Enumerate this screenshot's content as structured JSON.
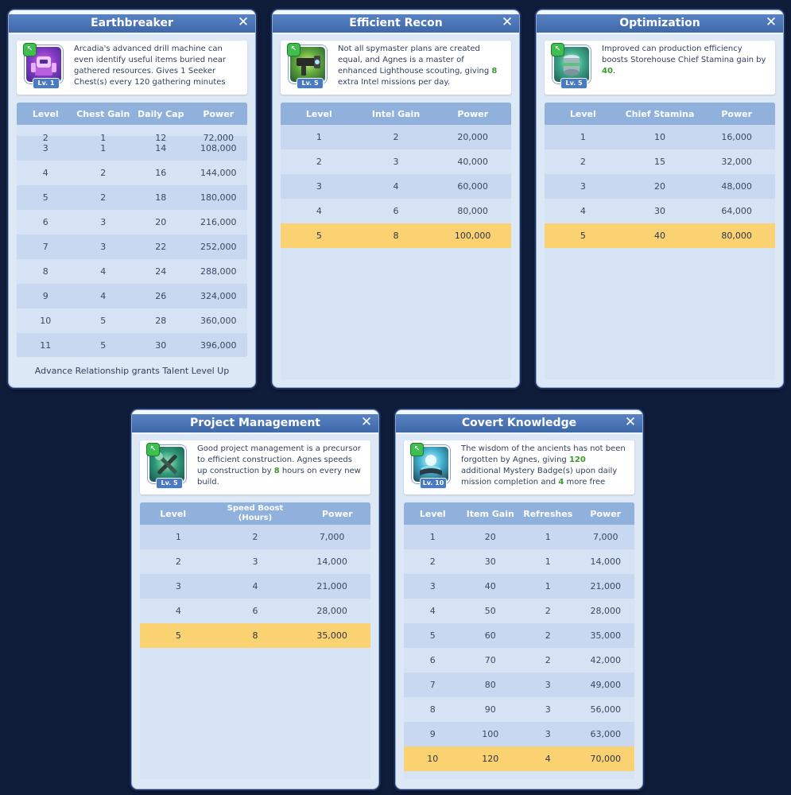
{
  "panels": {
    "earthbreaker": {
      "title": "Earthbreaker",
      "level_badge": "Lv. 1",
      "icon": "drill-robot-icon",
      "desc_1": "Arcadia's advanced drill machine can even identify useful items buried near gathered resources. Gives 1 Seeker Chest(s) every 120 gathering minutes (up",
      "headers": [
        "Level",
        "Chest Gain",
        "Daily Cap",
        "Power"
      ],
      "partial_row": [
        "2",
        "1",
        "12",
        "72,000"
      ],
      "rows": [
        [
          "3",
          "1",
          "14",
          "108,000"
        ],
        [
          "4",
          "2",
          "16",
          "144,000"
        ],
        [
          "5",
          "2",
          "18",
          "180,000"
        ],
        [
          "6",
          "3",
          "20",
          "216,000"
        ],
        [
          "7",
          "3",
          "22",
          "252,000"
        ],
        [
          "8",
          "4",
          "24",
          "288,000"
        ],
        [
          "9",
          "4",
          "26",
          "324,000"
        ],
        [
          "10",
          "5",
          "28",
          "360,000"
        ],
        [
          "11",
          "5",
          "30",
          "396,000"
        ]
      ],
      "footer": "Advance Relationship grants Talent Level Up"
    },
    "efficient_recon": {
      "title": "Efficient Recon",
      "level_badge": "Lv. 5",
      "icon": "spyglass-device-icon",
      "desc_1": "Not all spymaster plans are created equal, and Agnes is a master of enhanced Lighthouse scouting, giving ",
      "desc_g1": "8",
      "desc_2": " extra Intel missions per day.",
      "headers": [
        "Level",
        "Intel Gain",
        "Power"
      ],
      "rows": [
        [
          "1",
          "2",
          "20,000"
        ],
        [
          "2",
          "3",
          "40,000"
        ],
        [
          "3",
          "4",
          "60,000"
        ],
        [
          "4",
          "6",
          "80,000"
        ],
        [
          "5",
          "8",
          "100,000"
        ]
      ]
    },
    "optimization": {
      "title": "Optimization",
      "level_badge": "Lv. 5",
      "icon": "storage-can-icon",
      "desc_1": "Improved can production efficiency boosts Storehouse Chief Stamina gain by ",
      "desc_g1": "40",
      "desc_2": ".",
      "headers": [
        "Level",
        "Chief Stamina",
        "Power"
      ],
      "rows": [
        [
          "1",
          "10",
          "16,000"
        ],
        [
          "2",
          "15",
          "32,000"
        ],
        [
          "3",
          "20",
          "48,000"
        ],
        [
          "4",
          "30",
          "64,000"
        ],
        [
          "5",
          "40",
          "80,000"
        ]
      ]
    },
    "project_management": {
      "title": "Project Management",
      "level_badge": "Lv. 5",
      "icon": "wrench-hammer-icon",
      "desc_1": "Good project management is a precursor to efficient construction. Agnes speeds up construction by ",
      "desc_g1": "8",
      "desc_2": " hours on every new build.",
      "headers": [
        "Level",
        "Speed Boost (Hours)",
        "Power"
      ],
      "rows": [
        [
          "1",
          "2",
          "7,000"
        ],
        [
          "2",
          "3",
          "14,000"
        ],
        [
          "3",
          "4",
          "21,000"
        ],
        [
          "4",
          "6",
          "28,000"
        ],
        [
          "5",
          "8",
          "35,000"
        ]
      ]
    },
    "covert_knowledge": {
      "title": "Covert Knowledge",
      "level_badge": "Lv. 10",
      "icon": "crystal-book-icon",
      "desc_1": "The wisdom of the ancients has not been forgotten by Agnes, giving ",
      "desc_g1": "120",
      "desc_2": " additional Mystery Badge(s) upon daily mission completion and ",
      "desc_g2": "4",
      "desc_3": " more free refreshes at",
      "headers": [
        "Level",
        "Item Gain",
        "Refreshes",
        "Power"
      ],
      "rows": [
        [
          "1",
          "20",
          "1",
          "7,000"
        ],
        [
          "2",
          "30",
          "1",
          "14,000"
        ],
        [
          "3",
          "40",
          "1",
          "21,000"
        ],
        [
          "4",
          "50",
          "2",
          "28,000"
        ],
        [
          "5",
          "60",
          "2",
          "35,000"
        ],
        [
          "6",
          "70",
          "2",
          "42,000"
        ],
        [
          "7",
          "80",
          "3",
          "49,000"
        ],
        [
          "8",
          "90",
          "3",
          "56,000"
        ],
        [
          "9",
          "100",
          "3",
          "63,000"
        ],
        [
          "10",
          "120",
          "4",
          "70,000"
        ]
      ]
    }
  },
  "close_symbol": "✕",
  "pin_symbol": "↖",
  "colors": {
    "header_bar": "#4a76b8",
    "highlight_row": "#fbd272",
    "green_value": "#3a9a2c"
  }
}
